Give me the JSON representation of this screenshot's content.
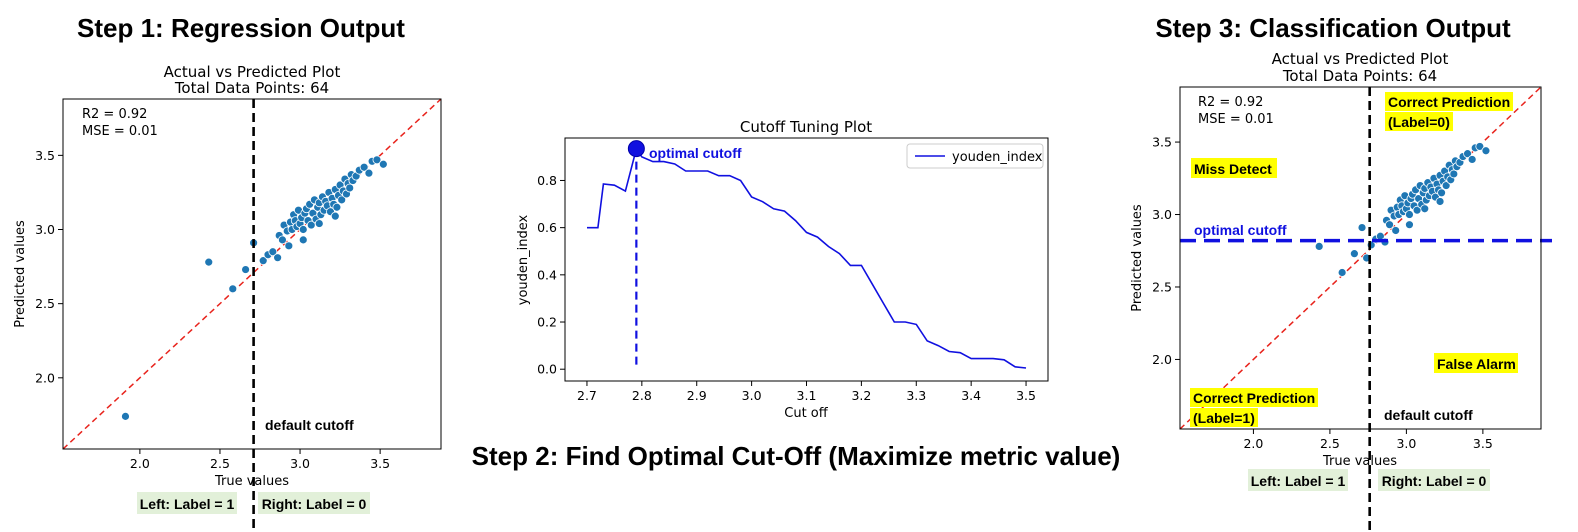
{
  "titles": {
    "step1": "Step 1: Regression Output",
    "step2": "Step 2: Find Optimal Cut-Off (Maximize metric value)",
    "step3": "Step 3: Classification Output"
  },
  "colors": {
    "points": "#1f77b4",
    "diagonal": "#e8231c",
    "cutoff_line": "#1010e0",
    "yellow_highlight": "#ffff00",
    "green_highlight": "#e2f0d9"
  },
  "chart_data": [
    {
      "type": "scatter",
      "title": "Actual vs Predicted Plot",
      "subtitle": "Total Data Points: 64",
      "xlabel": "True values",
      "ylabel": "Predicted values",
      "xlim": [
        1.52,
        3.88
      ],
      "ylim": [
        1.52,
        3.88
      ],
      "xticks": [
        2.0,
        2.5,
        3.0,
        3.5
      ],
      "yticks": [
        2.0,
        2.5,
        3.0,
        3.5
      ],
      "xtick_labels": [
        "2.0",
        "2.5",
        "3.0",
        "3.5"
      ],
      "ytick_labels": [
        "2.0",
        "2.5",
        "3.0",
        "3.5"
      ],
      "stats": {
        "r2": "R2 =  0.92",
        "mse": "MSE = 0.01"
      },
      "identity_line": true,
      "vertical_cutoff": {
        "x": 2.71,
        "label": "default cutoff"
      },
      "region_labels": {
        "left": "Left: Label = 1",
        "right": "Right: Label = 0"
      },
      "x": [
        1.91,
        2.43,
        2.58,
        2.66,
        2.71,
        2.77,
        2.8,
        2.83,
        2.86,
        2.87,
        2.89,
        2.9,
        2.92,
        2.93,
        2.94,
        2.95,
        2.96,
        2.97,
        2.98,
        2.99,
        3.0,
        3.01,
        3.02,
        3.03,
        3.04,
        3.05,
        3.06,
        3.07,
        3.08,
        3.09,
        3.1,
        3.11,
        3.12,
        3.13,
        3.14,
        3.15,
        3.16,
        3.17,
        3.18,
        3.19,
        3.2,
        3.21,
        3.22,
        3.23,
        3.24,
        3.25,
        3.26,
        3.27,
        3.28,
        3.29,
        3.3,
        3.31,
        3.32,
        3.33,
        3.35,
        3.37,
        3.4,
        3.43,
        3.45,
        3.48,
        3.52,
        3.02,
        3.12,
        3.22
      ],
      "y": [
        1.74,
        2.78,
        2.6,
        2.73,
        2.91,
        2.79,
        2.83,
        2.85,
        2.81,
        2.96,
        2.93,
        3.03,
        2.99,
        2.89,
        3.05,
        3.0,
        3.1,
        3.06,
        3.02,
        3.13,
        3.04,
        3.08,
        3.0,
        3.11,
        3.14,
        3.06,
        3.17,
        3.03,
        3.11,
        3.2,
        3.07,
        3.15,
        3.18,
        3.1,
        3.22,
        3.13,
        3.19,
        3.16,
        3.25,
        3.12,
        3.21,
        3.17,
        3.27,
        3.15,
        3.23,
        3.3,
        3.2,
        3.26,
        3.34,
        3.24,
        3.31,
        3.28,
        3.37,
        3.33,
        3.36,
        3.4,
        3.42,
        3.38,
        3.46,
        3.47,
        3.44,
        2.93,
        3.04,
        3.09
      ]
    },
    {
      "type": "line",
      "title": "Cutoff Tuning Plot",
      "xlabel": "Cut off",
      "ylabel": "youden_index",
      "xlim": [
        2.66,
        3.54
      ],
      "ylim": [
        -0.05,
        0.98
      ],
      "xticks": [
        2.7,
        2.8,
        2.9,
        3.0,
        3.1,
        3.2,
        3.3,
        3.4,
        3.5
      ],
      "yticks": [
        0.0,
        0.2,
        0.4,
        0.6,
        0.8
      ],
      "xtick_labels": [
        "2.7",
        "2.8",
        "2.9",
        "3.0",
        "3.1",
        "3.2",
        "3.3",
        "3.4",
        "3.5"
      ],
      "ytick_labels": [
        "0.0",
        "0.2",
        "0.4",
        "0.6",
        "0.8"
      ],
      "legend": "youden_index",
      "legend_position": "top-right",
      "optimal": {
        "x": 2.79,
        "y": 0.935,
        "label": "optimal cutoff"
      },
      "series": [
        {
          "name": "youden_index",
          "x": [
            2.7,
            2.72,
            2.73,
            2.75,
            2.77,
            2.79,
            2.8,
            2.82,
            2.84,
            2.86,
            2.88,
            2.9,
            2.92,
            2.94,
            2.96,
            2.98,
            3.0,
            3.02,
            3.04,
            3.06,
            3.08,
            3.1,
            3.12,
            3.14,
            3.16,
            3.18,
            3.2,
            3.22,
            3.24,
            3.26,
            3.28,
            3.3,
            3.32,
            3.34,
            3.36,
            3.38,
            3.4,
            3.42,
            3.44,
            3.46,
            3.48,
            3.5
          ],
          "y": [
            0.6,
            0.6,
            0.785,
            0.78,
            0.755,
            0.935,
            0.9,
            0.88,
            0.88,
            0.87,
            0.84,
            0.84,
            0.84,
            0.82,
            0.82,
            0.8,
            0.73,
            0.71,
            0.68,
            0.67,
            0.63,
            0.58,
            0.56,
            0.52,
            0.49,
            0.44,
            0.44,
            0.36,
            0.28,
            0.2,
            0.2,
            0.19,
            0.12,
            0.1,
            0.075,
            0.07,
            0.045,
            0.045,
            0.045,
            0.04,
            0.01,
            0.005
          ]
        }
      ]
    },
    {
      "type": "scatter",
      "title": "Actual vs Predicted Plot",
      "subtitle": "Total Data Points: 64",
      "xlabel": "True values",
      "ylabel": "Predicted values",
      "xlim": [
        1.52,
        3.88
      ],
      "ylim": [
        1.52,
        3.88
      ],
      "xticks": [
        2.0,
        2.5,
        3.0,
        3.5
      ],
      "yticks": [
        2.0,
        2.5,
        3.0,
        3.5
      ],
      "xtick_labels": [
        "2.0",
        "2.5",
        "3.0",
        "3.5"
      ],
      "ytick_labels": [
        "2.0",
        "2.5",
        "3.0",
        "3.5"
      ],
      "stats": {
        "r2": "R2 =  0.92",
        "mse": "MSE = 0.01"
      },
      "identity_line": true,
      "vertical_cutoff": {
        "x": 2.76,
        "label": "default cutoff"
      },
      "horizontal_cutoff": {
        "y": 2.82,
        "label": "optimal cutoff"
      },
      "region_labels": {
        "left": "Left: Label = 1",
        "right": "Right: Label = 0"
      },
      "quadrant_labels": {
        "top_right": [
          "Correct Prediction",
          "(Label=0)"
        ],
        "top_left": "Miss Detect",
        "bottom_right": "False Alarm",
        "bottom_left": [
          "Correct Prediction",
          "(Label=1)"
        ]
      },
      "x": [
        2.43,
        2.58,
        2.66,
        2.71,
        2.77,
        2.8,
        2.83,
        2.86,
        2.87,
        2.89,
        2.9,
        2.92,
        2.93,
        2.94,
        2.95,
        2.96,
        2.97,
        2.98,
        2.99,
        3.0,
        3.01,
        3.02,
        3.03,
        3.04,
        3.05,
        3.06,
        3.07,
        3.08,
        3.09,
        3.1,
        3.11,
        3.12,
        3.13,
        3.14,
        3.15,
        3.16,
        3.17,
        3.18,
        3.19,
        3.2,
        3.21,
        3.22,
        3.23,
        3.24,
        3.25,
        3.26,
        3.27,
        3.28,
        3.29,
        3.3,
        3.31,
        3.32,
        3.33,
        3.35,
        3.37,
        3.4,
        3.43,
        3.45,
        3.48,
        3.52,
        3.02,
        3.12,
        3.22,
        2.74
      ],
      "y": [
        2.78,
        2.6,
        2.73,
        2.91,
        2.79,
        2.83,
        2.85,
        2.81,
        2.96,
        2.93,
        3.03,
        2.99,
        2.89,
        3.05,
        3.0,
        3.1,
        3.06,
        3.02,
        3.13,
        3.04,
        3.08,
        3.0,
        3.11,
        3.14,
        3.06,
        3.17,
        3.03,
        3.11,
        3.2,
        3.07,
        3.15,
        3.18,
        3.1,
        3.22,
        3.13,
        3.19,
        3.16,
        3.25,
        3.12,
        3.21,
        3.17,
        3.27,
        3.15,
        3.23,
        3.3,
        3.2,
        3.26,
        3.34,
        3.24,
        3.31,
        3.28,
        3.37,
        3.33,
        3.36,
        3.4,
        3.42,
        3.38,
        3.46,
        3.47,
        3.44,
        2.93,
        3.04,
        3.09,
        2.7
      ]
    }
  ]
}
